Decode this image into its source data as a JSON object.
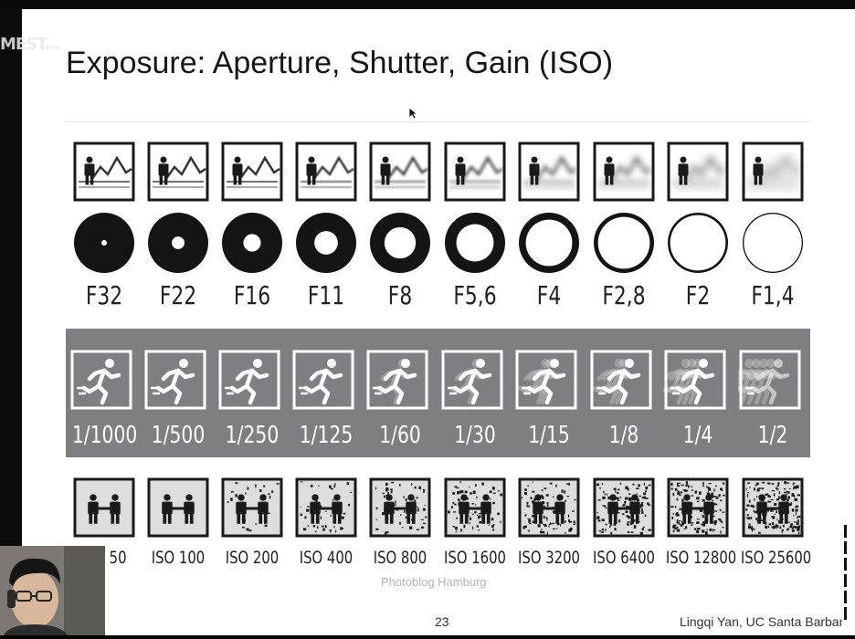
{
  "overlay_text": "MEST...",
  "slide": {
    "title": "Exposure: Aperture, Shutter, Gain (ISO)",
    "credit": "Photoblog Hamburg",
    "page_number": "23",
    "author": "Lingqi Yan, UC Santa Barbar"
  },
  "aperture": {
    "stops": [
      {
        "label": "F32",
        "hole_ratio": 0.09,
        "blur": 0
      },
      {
        "label": "F22",
        "hole_ratio": 0.21,
        "blur": 0
      },
      {
        "label": "F16",
        "hole_ratio": 0.29,
        "blur": 0
      },
      {
        "label": "F11",
        "hole_ratio": 0.39,
        "blur": 0.4
      },
      {
        "label": "F8",
        "hole_ratio": 0.52,
        "blur": 0.6
      },
      {
        "label": "F5,6",
        "hole_ratio": 0.62,
        "blur": 0.9
      },
      {
        "label": "F4",
        "hole_ratio": 0.77,
        "blur": 1.3
      },
      {
        "label": "F2,8",
        "hole_ratio": 0.86,
        "blur": 1.7
      },
      {
        "label": "F2",
        "hole_ratio": 0.92,
        "blur": 2.2
      },
      {
        "label": "F1,4",
        "hole_ratio": 0.96,
        "blur": 3.0
      }
    ]
  },
  "shutter": {
    "speeds": [
      {
        "label": "1/1000",
        "motion": 0
      },
      {
        "label": "1/500",
        "motion": 0
      },
      {
        "label": "1/250",
        "motion": 0
      },
      {
        "label": "1/125",
        "motion": 0
      },
      {
        "label": "1/60",
        "motion": 0.2
      },
      {
        "label": "1/30",
        "motion": 0.4
      },
      {
        "label": "1/15",
        "motion": 0.6
      },
      {
        "label": "1/8",
        "motion": 0.8
      },
      {
        "label": "1/4",
        "motion": 1.0
      },
      {
        "label": "1/2",
        "motion": 1.4
      }
    ]
  },
  "iso": {
    "values": [
      {
        "label": "ISO 50",
        "noise": 0
      },
      {
        "label": "ISO 100",
        "noise": 0
      },
      {
        "label": "ISO 200",
        "noise": 0.15
      },
      {
        "label": "ISO 400",
        "noise": 0.25
      },
      {
        "label": "ISO 800",
        "noise": 0.35
      },
      {
        "label": "ISO 1600",
        "noise": 0.45
      },
      {
        "label": "ISO 3200",
        "noise": 0.55
      },
      {
        "label": "ISO 6400",
        "noise": 0.7
      },
      {
        "label": "ISO 12800",
        "noise": 0.85
      },
      {
        "label": "ISO 25600",
        "noise": 1.0
      }
    ]
  },
  "colors": {
    "band": "#7e7f82",
    "ink": "#222222"
  }
}
